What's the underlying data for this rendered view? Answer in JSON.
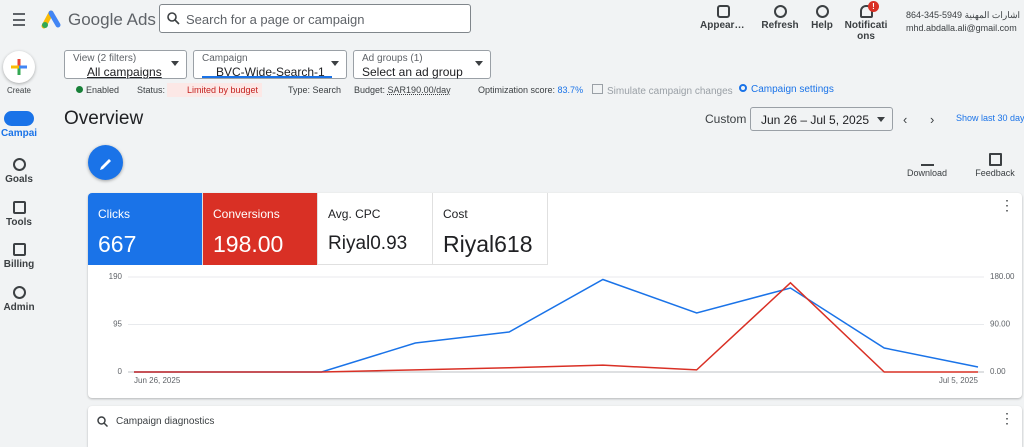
{
  "header": {
    "product": "Google Ads",
    "search_placeholder": "Search for a page or campaign",
    "actions": [
      "Appearance",
      "Refresh",
      "Help",
      "Notifications"
    ],
    "notification_badge": "!",
    "account_name": "864-345-5949 اشارات المهنية",
    "account_email": "mhd.abdalla.ali@gmail.com"
  },
  "nav": [
    "Create",
    "Campaigns",
    "Goals",
    "Tools",
    "Billing",
    "Admin"
  ],
  "filters": [
    {
      "label": "View (2 filters)",
      "value": "All campaigns"
    },
    {
      "label": "Campaign",
      "value": "BVC-Wide-Search-1"
    },
    {
      "label": "Ad groups (1)",
      "value": "Select an ad group"
    }
  ],
  "status": {
    "state": "Enabled",
    "status_label": "Status:",
    "status_value": "Limited by budget",
    "type": "Type: Search",
    "budget_label": "Budget:",
    "budget_value": "SAR190.00/day",
    "optimization_label": "Optimization score:",
    "optimization_value": "83.7%",
    "simulate": "Simulate campaign changes",
    "settings": "Campaign settings"
  },
  "overview": {
    "title": "Overview",
    "range_type": "Custom",
    "range": "Jun 26 – Jul 5, 2025",
    "show_last": "Show last 30 days",
    "download": "Download",
    "feedback": "Feedback"
  },
  "metrics": [
    {
      "label": "Clicks",
      "value": "667"
    },
    {
      "label": "Conversions",
      "value": "198.00"
    },
    {
      "label": "Avg. CPC",
      "value": "Riyal0.93"
    },
    {
      "label": "Cost",
      "value": "Riyal618"
    }
  ],
  "chart_data": {
    "type": "line",
    "categories": [
      "Jun 26, 2025",
      null,
      null,
      null,
      null,
      null,
      null,
      null,
      null,
      "Jul 5, 2025"
    ],
    "series": [
      {
        "color": "#1a73e8",
        "values": [
          0,
          0,
          0,
          58,
          80,
          185,
          118,
          168,
          48,
          10
        ]
      },
      {
        "color": "#d93025",
        "axis": "y2",
        "values": [
          0,
          0,
          0,
          4,
          8,
          13,
          4,
          169,
          0,
          0
        ]
      }
    ],
    "ylim": [
      0,
      190
    ],
    "yticks": [
      0,
      95,
      190
    ],
    "y2lim": [
      0,
      180
    ],
    "y2ticks": [
      {
        "value": 0,
        "label": "0.00"
      },
      {
        "value": 90,
        "label": "90.00"
      },
      {
        "value": 180,
        "label": "180.00"
      }
    ],
    "grid": true
  },
  "diagnostics": {
    "title": "Campaign diagnostics"
  }
}
